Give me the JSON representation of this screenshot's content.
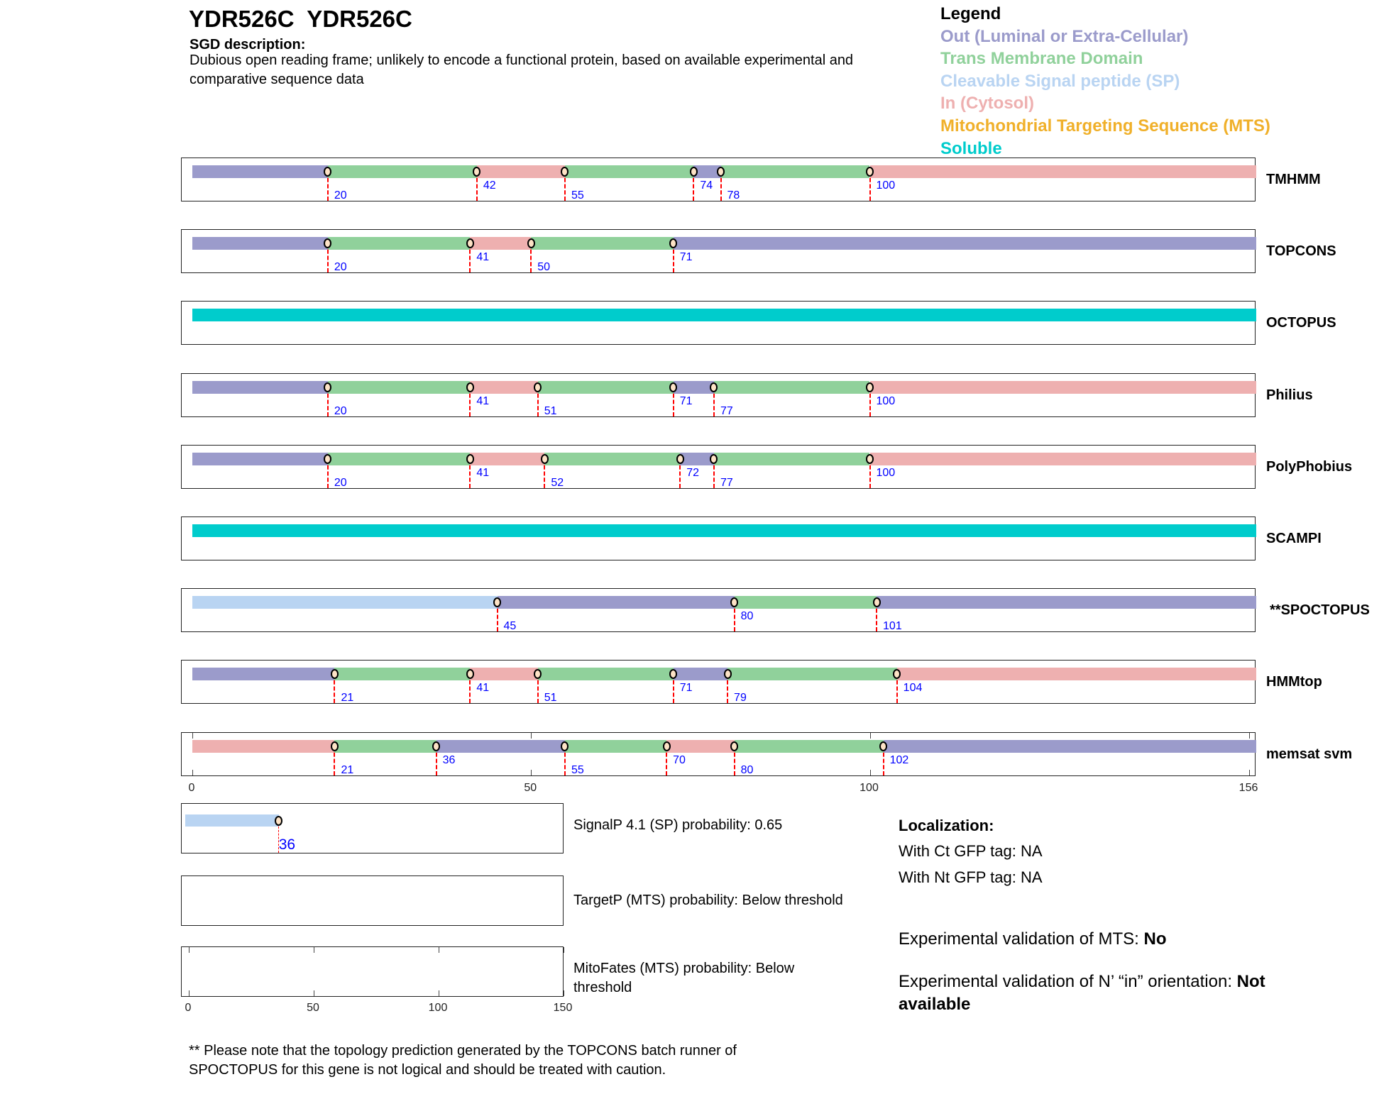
{
  "header": {
    "title": "YDR526C  YDR526C",
    "sgd_heading": "SGD description:",
    "sgd_description": "Dubious open reading frame; unlikely to encode a functional protein, based on available experimental and comparative sequence data"
  },
  "legend": {
    "title": "Legend",
    "items": [
      {
        "label": "Out (Luminal or Extra-Cellular)",
        "key": "out",
        "color": "#9b9bcb"
      },
      {
        "label": "Trans Membrane Domain",
        "key": "tm",
        "color": "#90d19b"
      },
      {
        "label": "Cleavable Signal peptide (SP)",
        "key": "sp",
        "color": "#b9d4f2"
      },
      {
        "label": "In (Cytosol)",
        "key": "in",
        "color": "#eeb0b0"
      },
      {
        "label": "Mitochondrial Targeting Sequence (MTS)",
        "key": "mts",
        "color": "#f0b02a"
      },
      {
        "label": "Soluble",
        "key": "soluble",
        "color": "#00cccc"
      }
    ]
  },
  "chart_data": {
    "type": "topology-tracks",
    "sequence_length": 156,
    "axis_ticks": [
      "0",
      "50",
      "100",
      "156"
    ],
    "tracks": [
      {
        "name": "TMHMM",
        "segments": [
          [
            "out",
            0,
            20
          ],
          [
            "tm",
            20,
            42
          ],
          [
            "in",
            42,
            55
          ],
          [
            "tm",
            55,
            74
          ],
          [
            "out",
            74,
            78
          ],
          [
            "tm",
            78,
            100
          ],
          [
            "in",
            100,
            157
          ]
        ],
        "boundaries": [
          "20",
          "42",
          "55",
          "74",
          "78",
          "100"
        ]
      },
      {
        "name": "TOPCONS",
        "segments": [
          [
            "out",
            0,
            20
          ],
          [
            "tm",
            20,
            41
          ],
          [
            "in",
            41,
            50
          ],
          [
            "tm",
            50,
            71
          ],
          [
            "out",
            71,
            157
          ]
        ],
        "boundaries": [
          "20",
          "41",
          "50",
          "71"
        ]
      },
      {
        "name": "OCTOPUS",
        "segments": [
          [
            "soluble",
            0,
            157
          ]
        ],
        "boundaries": []
      },
      {
        "name": "Philius",
        "segments": [
          [
            "out",
            0,
            20
          ],
          [
            "tm",
            20,
            41
          ],
          [
            "in",
            41,
            51
          ],
          [
            "tm",
            51,
            71
          ],
          [
            "out",
            71,
            77
          ],
          [
            "tm",
            77,
            100
          ],
          [
            "in",
            100,
            157
          ]
        ],
        "boundaries": [
          "20",
          "41",
          "51",
          "71",
          "77",
          "100"
        ]
      },
      {
        "name": "PolyPhobius",
        "segments": [
          [
            "out",
            0,
            20
          ],
          [
            "tm",
            20,
            41
          ],
          [
            "in",
            41,
            52
          ],
          [
            "tm",
            52,
            72
          ],
          [
            "out",
            72,
            77
          ],
          [
            "tm",
            77,
            100
          ],
          [
            "in",
            100,
            157
          ]
        ],
        "boundaries": [
          "20",
          "41",
          "52",
          "72",
          "77",
          "100"
        ]
      },
      {
        "name": "SCAMPI",
        "segments": [
          [
            "soluble",
            0,
            157
          ]
        ],
        "boundaries": []
      },
      {
        "name": "**SPOCTOPUS",
        "segments": [
          [
            "sp",
            0,
            45
          ],
          [
            "out",
            45,
            80
          ],
          [
            "tm",
            80,
            101
          ],
          [
            "out",
            101,
            157
          ]
        ],
        "boundaries": [
          "45",
          "80",
          "101"
        ]
      },
      {
        "name": "HMMtop",
        "segments": [
          [
            "out",
            0,
            21
          ],
          [
            "tm",
            21,
            41
          ],
          [
            "in",
            41,
            51
          ],
          [
            "tm",
            51,
            71
          ],
          [
            "out",
            71,
            79
          ],
          [
            "tm",
            79,
            104
          ],
          [
            "in",
            104,
            157
          ]
        ],
        "boundaries": [
          "21",
          "41",
          "51",
          "71",
          "79",
          "104"
        ]
      },
      {
        "name": "memsat svm",
        "segments": [
          [
            "in",
            0,
            21
          ],
          [
            "tm",
            21,
            36
          ],
          [
            "out",
            36,
            55
          ],
          [
            "tm",
            55,
            70
          ],
          [
            "in",
            70,
            80
          ],
          [
            "tm",
            80,
            102
          ],
          [
            "out",
            102,
            157
          ]
        ],
        "boundaries": [
          "21",
          "36",
          "55",
          "70",
          "80",
          "102"
        ]
      }
    ],
    "small_axis_ticks": [
      "0",
      "50",
      "100",
      "150"
    ],
    "signalp": {
      "segment": [
        "sp",
        0,
        36
      ],
      "boundary": "36"
    }
  },
  "predictions": {
    "signalp": "SignalP 4.1 (SP) probability: 0.65",
    "targetp": "TargetP (MTS) probability: Below threshold",
    "mitofates_1": "MitoFates (MTS) probability: Below",
    "mitofates_2": "threshold"
  },
  "localization": {
    "heading": "Localization:",
    "ct": "With Ct GFP tag: NA",
    "nt": "With Nt GFP tag: NA"
  },
  "validation": {
    "mts_label": "Experimental validation of MTS: ",
    "mts_value": "No",
    "orient_label": "Experimental validation of N’ “in” orientation: ",
    "orient_value": "Not",
    "orient_value2": "available"
  },
  "footnote": {
    "line1": "** Please note that the topology prediction generated by the TOPCONS batch runner of",
    "line2": "SPOCTOPUS for this gene is not logical and should be treated with caution."
  }
}
